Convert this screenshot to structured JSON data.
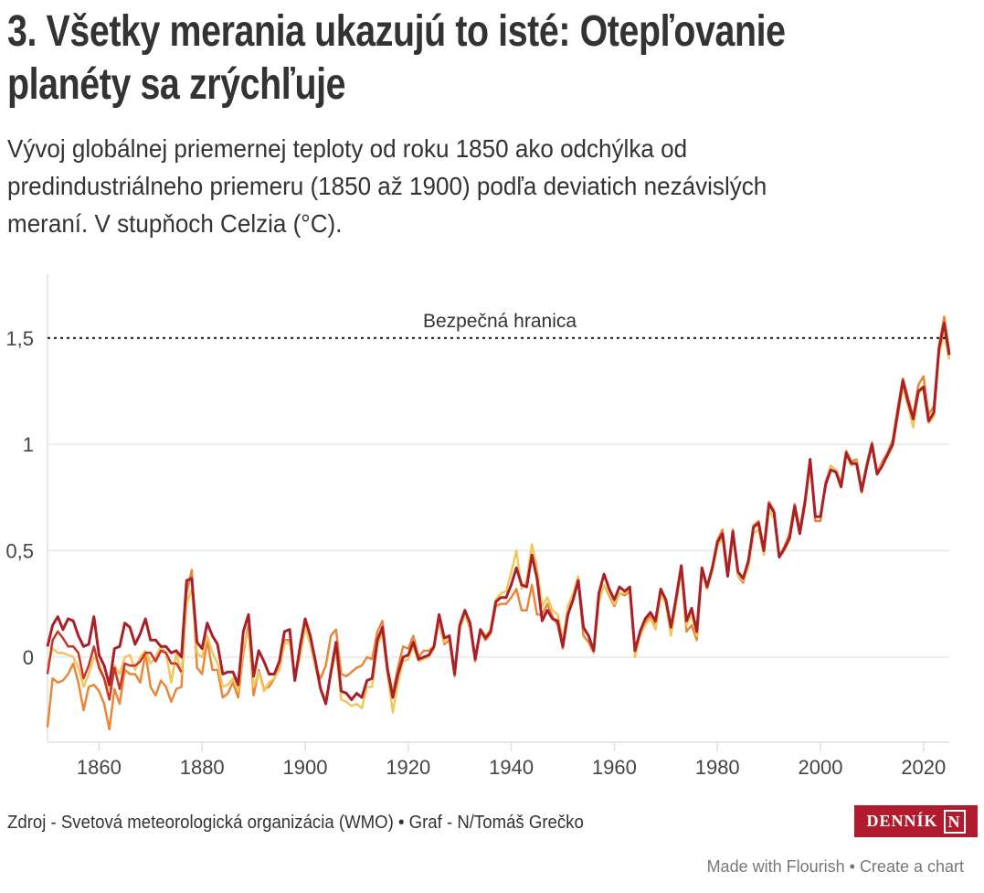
{
  "title_lines": [
    "3. Všetky merania ukazujú to isté: Otepľovanie",
    "planéty sa zrýchľuje"
  ],
  "subtitle_lines": [
    "Vývoj globálnej priemernej teploty od roku 1850 ako odchýlka od",
    "predindustriálneho priemeru (1850 až 1900) podľa deviatich nezávislých",
    "meraní. V stupňoch Celzia (°C)."
  ],
  "footer": {
    "source": "Zdroj - Svetová meteorologická organizácia (WMO) • Graf - N/Tomáš Grečko",
    "logo_text": "DENNÍK N",
    "made_with": "Made with Flourish",
    "separator": " • ",
    "create_chart": "Create a chart"
  },
  "chart_data": {
    "type": "line",
    "title": "",
    "xlabel": "",
    "ylabel": "",
    "xlim": [
      1850,
      2025
    ],
    "ylim": [
      -0.4,
      1.8
    ],
    "x_ticks": [
      1860,
      1880,
      1900,
      1920,
      1940,
      1960,
      1980,
      2000,
      2020
    ],
    "y_ticks": [
      {
        "value": 0,
        "label": "0"
      },
      {
        "value": 0.5,
        "label": "0,5"
      },
      {
        "value": 1,
        "label": "1"
      },
      {
        "value": 1.5,
        "label": "1,5"
      }
    ],
    "grid": "horizontal",
    "reference_line": {
      "value": 1.5,
      "label": "Bezpečná hranica",
      "style": "dotted",
      "color": "#222222"
    },
    "series": [
      {
        "color": "#e8873a",
        "start_year": 1850,
        "values": [
          -0.33,
          -0.1,
          -0.12,
          -0.11,
          -0.08,
          -0.03,
          -0.12,
          -0.25,
          -0.14,
          -0.13,
          -0.16,
          -0.22,
          -0.34,
          -0.15,
          -0.22,
          -0.06,
          -0.08,
          -0.08,
          -0.12,
          0.02,
          -0.14,
          -0.18,
          -0.11,
          -0.14,
          -0.21,
          -0.15,
          -0.14,
          0.3,
          0.41,
          -0.05,
          -0.08,
          0.08,
          -0.06,
          -0.06,
          -0.19,
          -0.17,
          -0.12,
          -0.19,
          0.02,
          0.15,
          -0.18,
          -0.06,
          -0.15,
          -0.14,
          -0.1,
          -0.05,
          0.08,
          0.08,
          -0.1,
          0.02,
          0.16,
          0.08,
          -0.05,
          -0.1,
          -0.04,
          0.1,
          0.13,
          -0.08,
          -0.09,
          -0.07,
          -0.05,
          -0.04,
          0.0,
          -0.01,
          0.12,
          0.17,
          -0.05,
          -0.17,
          -0.05,
          0.05,
          0.04,
          0.1,
          0.0,
          0.03,
          0.03,
          0.05,
          0.17,
          0.06,
          0.08,
          -0.09,
          0.14,
          0.2,
          0.14,
          -0.02,
          0.12,
          0.08,
          0.11,
          0.24,
          0.25,
          0.25,
          0.28,
          0.32,
          0.22,
          0.22,
          0.34,
          0.2,
          0.2,
          0.25,
          0.19,
          0.15,
          0.04,
          0.22,
          0.29,
          0.35,
          0.1,
          0.07,
          0.02,
          0.27,
          0.34,
          0.29,
          0.24,
          0.3,
          0.29,
          0.31,
          0.02,
          0.1,
          0.16,
          0.19,
          0.15,
          0.3,
          0.25,
          0.12,
          0.26,
          0.41,
          0.12,
          0.15,
          0.08,
          0.4,
          0.32,
          0.42,
          0.55,
          0.6,
          0.4,
          0.6,
          0.38,
          0.35,
          0.44,
          0.62,
          0.64,
          0.51,
          0.73,
          0.69,
          0.47,
          0.52,
          0.58,
          0.72,
          0.6,
          0.74,
          0.92,
          0.64,
          0.64,
          0.82,
          0.9,
          0.88,
          0.82,
          0.97,
          0.92,
          0.93,
          0.79,
          0.91,
          1.01,
          0.87,
          0.92,
          0.96,
          1.02,
          1.17,
          1.31,
          1.22,
          1.13,
          1.28,
          1.32,
          1.14,
          1.18,
          1.46,
          1.6,
          1.44
        ]
      },
      {
        "color": "#f0c75a",
        "start_year": 1850,
        "values": [
          -0.04,
          0.04,
          0.02,
          0.02,
          0.01,
          0.0,
          -0.05,
          -0.14,
          -0.08,
          0.0,
          -0.03,
          -0.1,
          -0.15,
          -0.04,
          -0.08,
          0.0,
          0.01,
          -0.06,
          0.0,
          0.03,
          -0.03,
          0.0,
          0.05,
          0.02,
          -0.12,
          0.02,
          -0.08,
          0.25,
          0.32,
          0.02,
          0.0,
          0.1,
          0.02,
          -0.03,
          -0.14,
          -0.13,
          -0.1,
          -0.16,
          0.05,
          0.12,
          -0.14,
          -0.07,
          -0.16,
          -0.12,
          -0.1,
          -0.06,
          0.06,
          0.07,
          -0.09,
          0.0,
          0.14,
          0.06,
          -0.05,
          -0.15,
          -0.2,
          -0.08,
          0.03,
          -0.2,
          -0.21,
          -0.23,
          -0.22,
          -0.24,
          -0.14,
          -0.14,
          0.05,
          0.12,
          -0.08,
          -0.26,
          -0.12,
          -0.02,
          -0.01,
          0.05,
          -0.02,
          -0.01,
          0.0,
          0.04,
          0.18,
          0.07,
          0.09,
          -0.06,
          0.13,
          0.2,
          0.15,
          0.0,
          0.13,
          0.1,
          0.13,
          0.27,
          0.3,
          0.31,
          0.4,
          0.5,
          0.32,
          0.36,
          0.53,
          0.42,
          0.24,
          0.28,
          0.22,
          0.2,
          0.08,
          0.24,
          0.3,
          0.38,
          0.14,
          0.1,
          0.02,
          0.26,
          0.34,
          0.3,
          0.25,
          0.3,
          0.3,
          0.32,
          0.0,
          0.1,
          0.15,
          0.18,
          0.13,
          0.29,
          0.25,
          0.1,
          0.25,
          0.41,
          0.15,
          0.2,
          0.1,
          0.4,
          0.32,
          0.4,
          0.52,
          0.56,
          0.38,
          0.57,
          0.38,
          0.36,
          0.42,
          0.58,
          0.6,
          0.48,
          0.69,
          0.65,
          0.47,
          0.5,
          0.55,
          0.69,
          0.58,
          0.71,
          0.9,
          0.66,
          0.66,
          0.8,
          0.9,
          0.88,
          0.8,
          0.95,
          0.9,
          0.92,
          0.77,
          0.89,
          0.99,
          0.86,
          0.91,
          0.94,
          0.99,
          1.13,
          1.27,
          1.18,
          1.08,
          1.24,
          1.26,
          1.1,
          1.13,
          1.42,
          1.52,
          1.4
        ]
      },
      {
        "color": "#c8352a",
        "start_year": 1850,
        "values": [
          -0.08,
          0.08,
          0.12,
          0.09,
          0.05,
          0.05,
          0.02,
          -0.1,
          -0.04,
          0.05,
          -0.05,
          -0.1,
          -0.2,
          -0.05,
          -0.15,
          -0.03,
          -0.04,
          -0.04,
          -0.02,
          0.02,
          0.02,
          -0.02,
          0.03,
          0.02,
          -0.03,
          -0.03,
          -0.07
        ]
      },
      {
        "color": "#a91f2a",
        "start_year": 1850,
        "values": [
          0.05,
          0.15,
          0.19,
          0.13,
          0.18,
          0.17,
          0.1,
          0.05,
          0.06,
          0.19,
          0.01,
          -0.04,
          -0.13,
          0.04,
          0.05,
          0.16,
          0.14,
          0.06,
          0.11,
          0.18,
          0.08,
          0.08,
          0.05,
          0.05,
          0.02,
          0.03,
          0.0,
          0.36,
          0.37,
          0.07,
          0.04,
          0.16,
          0.1,
          0.06,
          -0.08,
          -0.07,
          -0.07,
          -0.13,
          0.12,
          0.2,
          -0.09,
          0.03,
          -0.02,
          -0.08,
          -0.08,
          -0.02,
          0.12,
          0.13,
          -0.11,
          0.05,
          0.18,
          0.1,
          -0.02,
          -0.15,
          -0.22,
          -0.07,
          0.07,
          -0.16,
          -0.17,
          -0.2,
          -0.17,
          -0.19,
          -0.11,
          -0.1,
          0.08,
          0.14,
          -0.06,
          -0.19,
          -0.08,
          0.0,
          0.01,
          0.07,
          -0.01,
          0.0,
          0.01,
          0.05,
          0.2,
          0.09,
          0.1,
          -0.08,
          0.15,
          0.22,
          0.16,
          -0.01,
          0.13,
          0.09,
          0.12,
          0.26,
          0.28,
          0.28,
          0.34,
          0.42,
          0.34,
          0.33,
          0.48,
          0.37,
          0.17,
          0.22,
          0.18,
          0.17,
          0.05,
          0.2,
          0.27,
          0.36,
          0.14,
          0.1,
          0.03,
          0.3,
          0.39,
          0.32,
          0.27,
          0.33,
          0.31,
          0.33,
          0.03,
          0.12,
          0.18,
          0.21,
          0.17,
          0.32,
          0.27,
          0.14,
          0.28,
          0.43,
          0.17,
          0.23,
          0.12,
          0.42,
          0.33,
          0.42,
          0.54,
          0.58,
          0.38,
          0.59,
          0.4,
          0.37,
          0.45,
          0.61,
          0.63,
          0.5,
          0.72,
          0.68,
          0.47,
          0.51,
          0.56,
          0.71,
          0.58,
          0.73,
          0.93,
          0.66,
          0.66,
          0.81,
          0.88,
          0.87,
          0.8,
          0.96,
          0.91,
          0.91,
          0.78,
          0.9,
          1.0,
          0.86,
          0.9,
          0.95,
          1.0,
          1.15,
          1.3,
          1.2,
          1.12,
          1.25,
          1.27,
          1.11,
          1.15,
          1.45,
          1.57,
          1.42
        ]
      }
    ]
  }
}
